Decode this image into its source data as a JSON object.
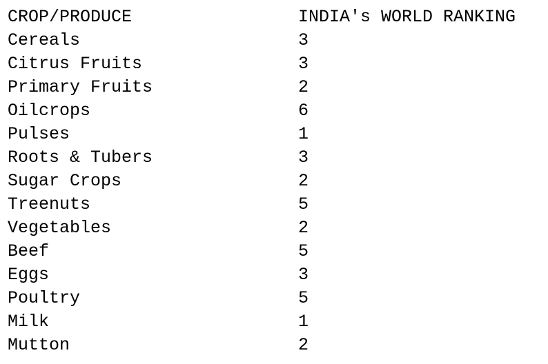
{
  "table": {
    "headers": [
      "CROP/PRODUCE",
      "INDIA's WORLD RANKING"
    ],
    "rows": [
      {
        "crop": "Cereals",
        "rank": "3"
      },
      {
        "crop": "Citrus Fruits",
        "rank": "3"
      },
      {
        "crop": "Primary Fruits",
        "rank": "2"
      },
      {
        "crop": "Oilcrops",
        "rank": "6"
      },
      {
        "crop": "Pulses",
        "rank": "1"
      },
      {
        "crop": "Roots & Tubers",
        "rank": "3"
      },
      {
        "crop": "Sugar Crops",
        "rank": "2"
      },
      {
        "crop": "Treenuts",
        "rank": "5"
      },
      {
        "crop": "Vegetables",
        "rank": "2"
      },
      {
        "crop": "Beef",
        "rank": "5"
      },
      {
        "crop": "Eggs",
        "rank": "3"
      },
      {
        "crop": "Poultry",
        "rank": "5"
      },
      {
        "crop": "Milk",
        "rank": "1"
      },
      {
        "crop": "Mutton",
        "rank": "2"
      }
    ]
  }
}
